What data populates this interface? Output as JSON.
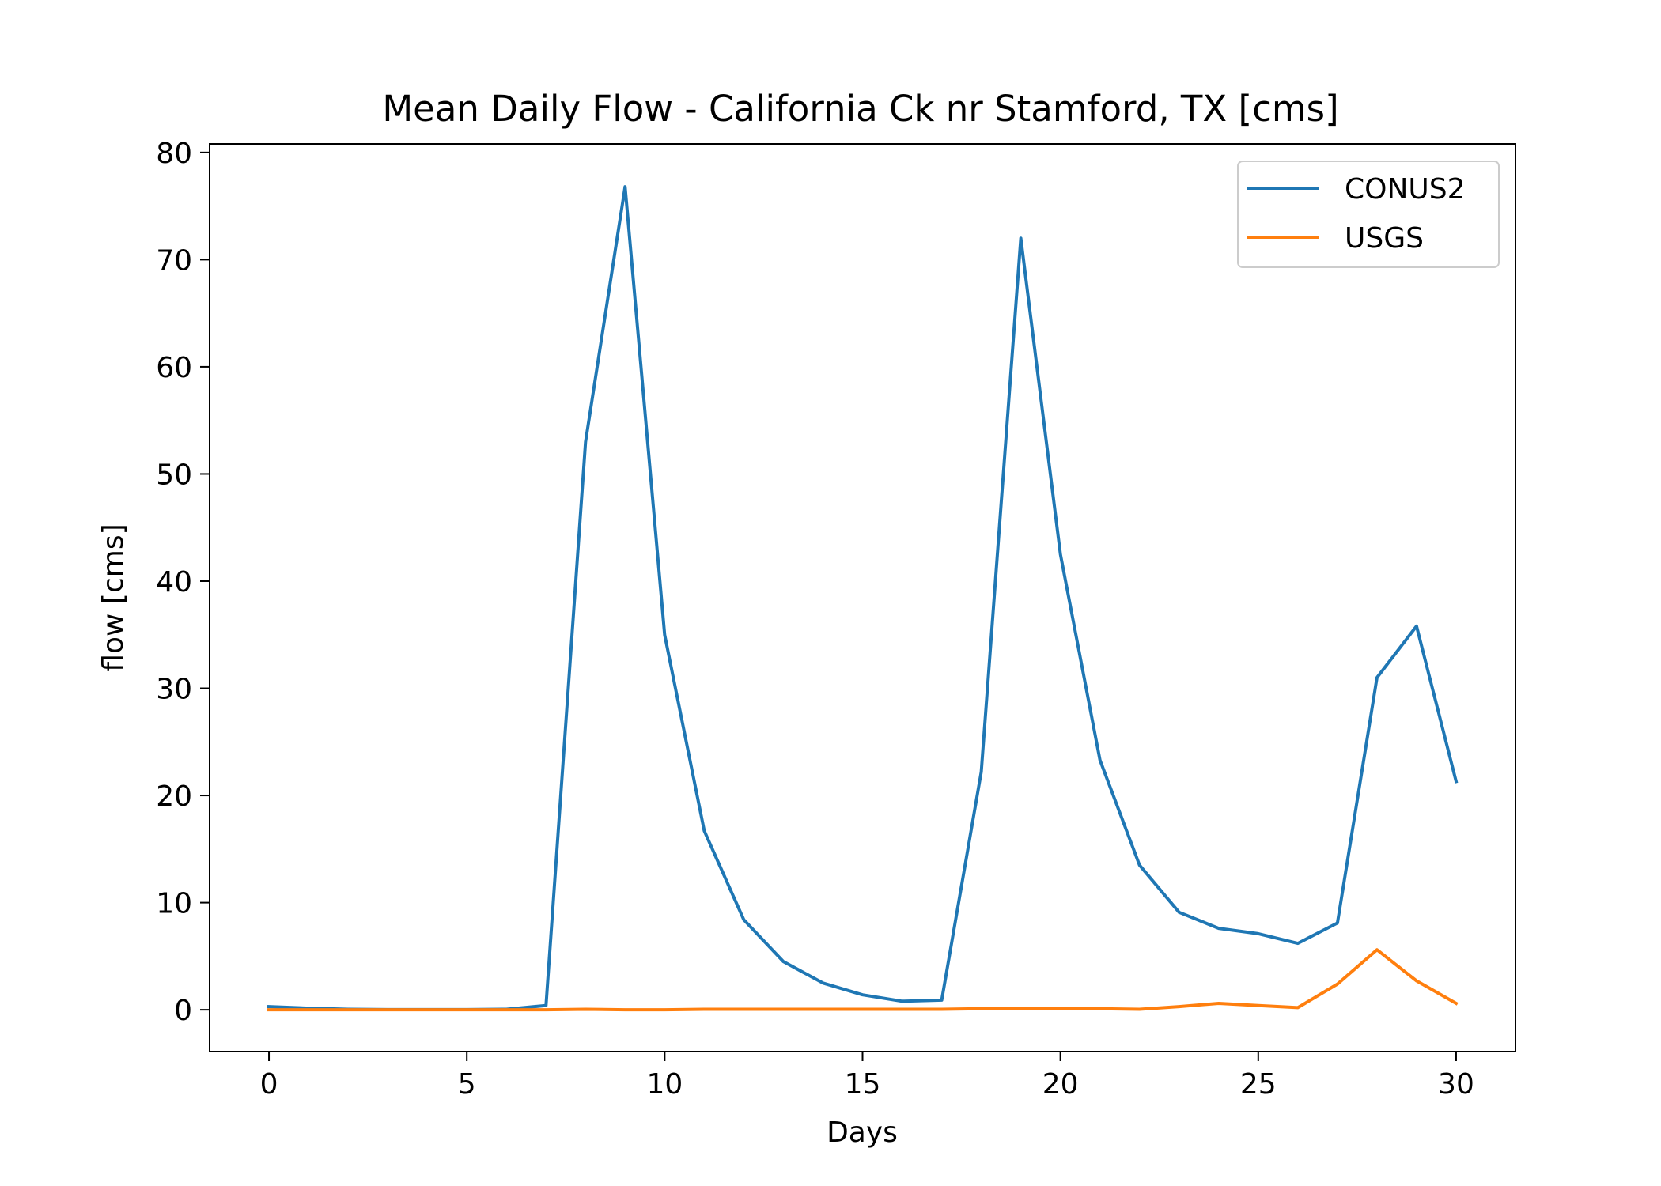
{
  "chart_data": {
    "type": "line",
    "title": "Mean Daily Flow - California Ck nr Stamford, TX [cms]",
    "xlabel": "Days",
    "ylabel": "flow [cms]",
    "xlim": [
      -1.5,
      31.5
    ],
    "ylim": [
      -3.9,
      80.8
    ],
    "xticks": [
      0,
      5,
      10,
      15,
      20,
      25,
      30
    ],
    "yticks": [
      0,
      10,
      20,
      30,
      40,
      50,
      60,
      70,
      80
    ],
    "grid": false,
    "legend_position": "upper-right",
    "x": [
      0,
      1,
      2,
      3,
      4,
      5,
      6,
      7,
      8,
      9,
      10,
      11,
      12,
      13,
      14,
      15,
      16,
      17,
      18,
      19,
      20,
      21,
      22,
      23,
      24,
      25,
      26,
      27,
      28,
      29,
      30
    ],
    "series": [
      {
        "name": "CONUS2",
        "color": "#1f77b4",
        "values": [
          0.3,
          0.15,
          0.05,
          0.02,
          0.02,
          0.02,
          0.05,
          0.4,
          53.0,
          76.8,
          35.0,
          16.7,
          8.4,
          4.5,
          2.5,
          1.4,
          0.8,
          0.9,
          22.2,
          72.0,
          42.5,
          23.3,
          13.5,
          9.1,
          7.6,
          7.1,
          6.2,
          8.1,
          31.0,
          35.8,
          21.3
        ]
      },
      {
        "name": "USGS",
        "color": "#ff7f0e",
        "values": [
          0.0,
          0.0,
          0.0,
          0.0,
          0.0,
          0.0,
          0.0,
          0.0,
          0.05,
          0.0,
          0.0,
          0.05,
          0.05,
          0.05,
          0.05,
          0.05,
          0.05,
          0.05,
          0.1,
          0.1,
          0.1,
          0.1,
          0.05,
          0.3,
          0.6,
          0.4,
          0.2,
          2.4,
          5.6,
          2.7,
          0.6
        ]
      }
    ]
  }
}
